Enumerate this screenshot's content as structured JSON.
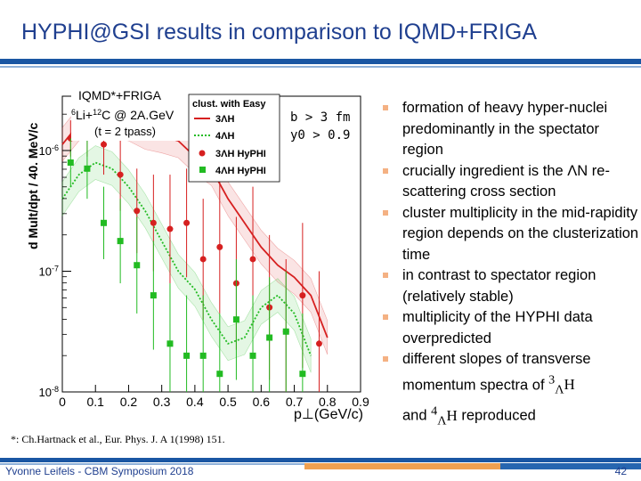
{
  "slide": {
    "title": "HYPHI@GSI results in comparison to IQMD+FRIGA",
    "author": "Yvonne Leifels - CBM Symposium 2018",
    "page": "42",
    "footnote": "*: Ch.Hartnack et al., Eur. Phys. J. A 1(1998) 151."
  },
  "notes": {
    "b": "b > 3 fm",
    "y": "y0 > 0.9"
  },
  "bullets": [
    "formation of heavy hyper-nuclei predominantly in the spectator region",
    "crucially ingredient is the ΛN re-scattering cross section",
    "cluster multiplicity in the mid-rapidity region depends on the clusterization time",
    "in contrast to spectator region (relatively stable)",
    "multiplicity of the HYPHI data overpredicted",
    "different slopes of transverse momentum spectra of",
    "and",
    "reproduced"
  ],
  "colors": {
    "title": "#1f3f8f",
    "accent": "#1a56a3",
    "bullet": "#f4b183",
    "h3": "#d62020",
    "h4": "#22bb22"
  },
  "chart_data": {
    "type": "scatter",
    "ylabel": "d Mult/dpt / 40. MeV/c",
    "xlabel": "p⊥(GeV/c)",
    "xlim": [
      0,
      0.9
    ],
    "ylim_log10": [
      -8,
      -5.55
    ],
    "xticks": [
      "0",
      "0.1",
      "0.2",
      "0.3",
      "0.4",
      "0.5",
      "0.6",
      "0.7",
      "0.8",
      "0.9"
    ],
    "yticks": [
      {
        "label": "10^-6",
        "value": -6
      },
      {
        "label": "10^-7",
        "value": -7
      },
      {
        "label": "10^-8",
        "value": -8
      }
    ],
    "annotation": {
      "line1": "IQMD*+FRIGA",
      "line2": "6Li+12C @ 2A.GeV",
      "line3": "(t = 2 tpass)"
    },
    "legend": {
      "header": "clust. with Easy",
      "entries": [
        "3ΛH",
        "4ΛH",
        "3ΛH HyPHI",
        "4ΛH HyPHI"
      ]
    },
    "series": [
      {
        "name": "3ΛH",
        "kind": "line",
        "color": "#d62020",
        "x": [
          0.0,
          0.05,
          0.1,
          0.15,
          0.2,
          0.25,
          0.3,
          0.35,
          0.4,
          0.45,
          0.5,
          0.55,
          0.6,
          0.65,
          0.7,
          0.75,
          0.8
        ],
        "y": [
          -5.95,
          -5.78,
          -5.72,
          -5.75,
          -5.78,
          -5.85,
          -5.88,
          -5.92,
          -6.05,
          -6.15,
          -6.4,
          -6.6,
          -6.8,
          -6.95,
          -7.05,
          -7.2,
          -7.55
        ]
      },
      {
        "name": "4ΛH",
        "kind": "line",
        "color": "#22bb22",
        "x": [
          0.0,
          0.05,
          0.1,
          0.15,
          0.2,
          0.25,
          0.3,
          0.35,
          0.4,
          0.45,
          0.5,
          0.55,
          0.6,
          0.65,
          0.7,
          0.75
        ],
        "y": [
          -6.4,
          -6.2,
          -6.1,
          -6.15,
          -6.3,
          -6.5,
          -6.75,
          -7.0,
          -7.15,
          -7.4,
          -7.6,
          -7.55,
          -7.3,
          -7.2,
          -7.35,
          -7.7
        ]
      },
      {
        "name": "3ΛH HyPHI",
        "kind": "points",
        "color": "#d62020",
        "x": [
          0.025,
          0.075,
          0.125,
          0.175,
          0.225,
          0.275,
          0.325,
          0.375,
          0.425,
          0.475,
          0.525,
          0.575,
          0.625,
          0.675,
          0.725,
          0.775
        ],
        "y": [
          -5.9,
          -5.85,
          -5.95,
          -6.2,
          -6.5,
          -6.6,
          -6.65,
          -6.6,
          -6.9,
          -6.8,
          -7.1,
          -6.9,
          -7.3,
          -7.5,
          -7.2,
          -7.6
        ],
        "err": [
          0.15,
          0.2,
          0.25,
          0.3,
          0.35,
          0.4,
          0.45,
          0.45,
          0.5,
          0.55,
          0.55,
          0.6,
          0.6,
          0.6,
          0.6,
          0.6
        ]
      },
      {
        "name": "4ΛH HyPHI",
        "kind": "points",
        "color": "#22bb22",
        "x": [
          0.025,
          0.075,
          0.125,
          0.175,
          0.225,
          0.275,
          0.325,
          0.375,
          0.425,
          0.475,
          0.525,
          0.575,
          0.625,
          0.675,
          0.725
        ],
        "y": [
          -6.1,
          -6.15,
          -6.6,
          -6.75,
          -6.95,
          -7.2,
          -7.6,
          -7.7,
          -7.7,
          -7.85,
          -7.4,
          -7.7,
          -7.55,
          -7.5,
          -7.85
        ],
        "err": [
          0.2,
          0.25,
          0.3,
          0.35,
          0.4,
          0.45,
          0.5,
          0.5,
          0.5,
          0.5,
          0.5,
          0.5,
          0.5,
          0.5,
          0.5
        ]
      }
    ]
  }
}
